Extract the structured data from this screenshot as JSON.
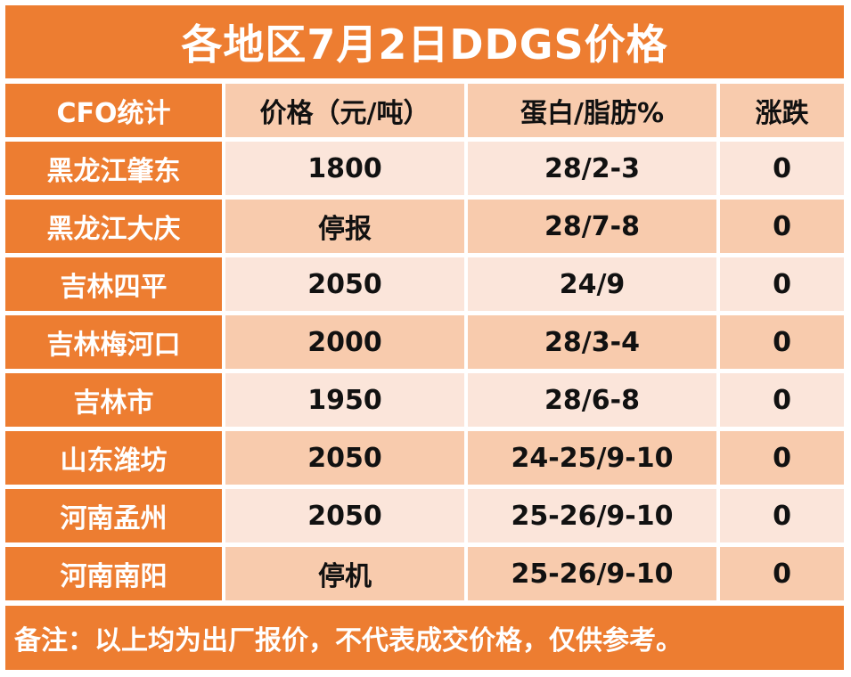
{
  "title": "各地区7月2日DDGS价格",
  "header": [
    "CFO统计",
    "价格（元/吨）",
    "蛋白/脂肪%",
    "涨跌"
  ],
  "rows": [
    {
      "region": "黑龙江肇东",
      "price": "1800",
      "protein_fat": "28/2-3",
      "change": "0"
    },
    {
      "region": "黑龙江大庆",
      "price": "停报",
      "protein_fat": "28/7-8",
      "change": "0"
    },
    {
      "region": "吉林四平",
      "price": "2050",
      "protein_fat": "24/9",
      "change": "0"
    },
    {
      "region": "吉林梅河口",
      "price": "2000",
      "protein_fat": "28/3-4",
      "change": "0"
    },
    {
      "region": "吉林市",
      "price": "1950",
      "protein_fat": "28/6-8",
      "change": "0"
    },
    {
      "region": "山东潍坊",
      "price": "2050",
      "protein_fat": "24-25/9-10",
      "change": "0"
    },
    {
      "region": "河南孟州",
      "price": "2050",
      "protein_fat": "25-26/9-10",
      "change": "0"
    },
    {
      "region": "河南南阳",
      "price": "停机",
      "protein_fat": "25-26/9-10",
      "change": "0"
    }
  ],
  "note": "备注：以上均为出厂报价，不代表成交价格，仅供参考。",
  "colors": {
    "accent": "#ED7D31",
    "header_fill": "#F8CBAD",
    "light_fill": "#FBE5DA"
  }
}
